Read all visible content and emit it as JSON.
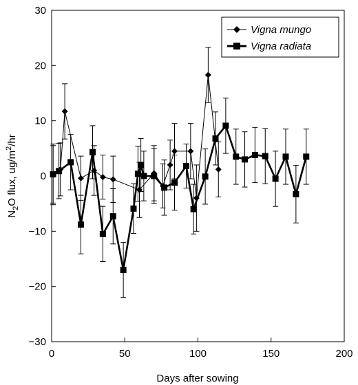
{
  "chart_data": {
    "type": "line",
    "title": "",
    "xlabel": "Days after sowing",
    "ylabel": {
      "prefix": "N",
      "sub": "2",
      "mid": "O flux, ug/m",
      "sup": "2",
      "suffix": "/hr"
    },
    "xlim": [
      0,
      200
    ],
    "ylim": [
      -30,
      30
    ],
    "xticks": [
      0,
      50,
      100,
      150,
      200
    ],
    "yticks": [
      -30,
      -20,
      -10,
      0,
      10,
      20,
      30
    ],
    "grid": false,
    "legend_position": "top-right",
    "series": [
      {
        "name": "Vigna mungo",
        "marker": "diamond",
        "line": "thin",
        "color": "#000000",
        "points": [
          {
            "x": 1,
            "y": 0.3,
            "err": 5.2
          },
          {
            "x": 6,
            "y": 1.2,
            "err": 4.8
          },
          {
            "x": 9,
            "y": 11.7,
            "err": 5.0
          },
          {
            "x": 20,
            "y": -0.4,
            "err": 4.0
          },
          {
            "x": 29,
            "y": 1.0,
            "err": 4.5
          },
          {
            "x": 35,
            "y": -0.2,
            "err": 4.0
          },
          {
            "x": 42,
            "y": -0.6,
            "err": 4.2
          },
          {
            "x": 60,
            "y": -2.5,
            "err": 5.0
          },
          {
            "x": 70,
            "y": 0.5,
            "err": 5.0
          },
          {
            "x": 76,
            "y": -1.8,
            "err": 4.0
          },
          {
            "x": 81,
            "y": 2.0,
            "err": 4.5
          },
          {
            "x": 84,
            "y": 4.5,
            "err": 5.0
          },
          {
            "x": 95,
            "y": 4.5,
            "err": 5.0
          },
          {
            "x": 99,
            "y": -4.0,
            "err": 6.0
          },
          {
            "x": 107,
            "y": 18.3,
            "err": 5.0
          },
          {
            "x": 114,
            "y": 1.2,
            "err": 5.0
          }
        ]
      },
      {
        "name": "Vigna radiata",
        "marker": "square",
        "line": "thick",
        "color": "#000000",
        "points": [
          {
            "x": 1,
            "y": 0.3,
            "err": 5.5
          },
          {
            "x": 5,
            "y": 0.9,
            "err": 5.0
          },
          {
            "x": 13,
            "y": 2.5,
            "err": 5.0
          },
          {
            "x": 20,
            "y": -8.8,
            "err": 5.3
          },
          {
            "x": 28,
            "y": 4.3,
            "err": 4.8
          },
          {
            "x": 35,
            "y": -10.5,
            "err": 5.0
          },
          {
            "x": 42,
            "y": -7.3,
            "err": 5.0
          },
          {
            "x": 49,
            "y": -17.0,
            "err": 5.0
          },
          {
            "x": 56,
            "y": -5.9,
            "err": 4.5
          },
          {
            "x": 59,
            "y": 0.4,
            "err": 5.0
          },
          {
            "x": 61,
            "y": 2.0,
            "err": 4.8
          },
          {
            "x": 63,
            "y": 0.0,
            "err": 4.5
          },
          {
            "x": 70,
            "y": 0.0,
            "err": 5.0
          },
          {
            "x": 77,
            "y": -2.1,
            "err": 5.0
          },
          {
            "x": 84,
            "y": -1.2,
            "err": 5.0
          },
          {
            "x": 92,
            "y": 1.8,
            "err": 4.0
          },
          {
            "x": 97,
            "y": -6.0,
            "err": 4.5
          },
          {
            "x": 105,
            "y": -0.1,
            "err": 5.0
          },
          {
            "x": 112,
            "y": 6.8,
            "err": 4.8
          },
          {
            "x": 119,
            "y": 9.1,
            "err": 5.0
          },
          {
            "x": 126,
            "y": 3.5,
            "err": 5.0
          },
          {
            "x": 132,
            "y": 3.0,
            "err": 5.0
          },
          {
            "x": 139,
            "y": 3.8,
            "err": 5.0
          },
          {
            "x": 146,
            "y": 3.6,
            "err": 5.0
          },
          {
            "x": 153,
            "y": -0.5,
            "err": 5.0
          },
          {
            "x": 160,
            "y": 3.5,
            "err": 5.0
          },
          {
            "x": 167,
            "y": -3.3,
            "err": 5.2
          },
          {
            "x": 174,
            "y": 3.5,
            "err": 5.0
          }
        ]
      }
    ]
  }
}
